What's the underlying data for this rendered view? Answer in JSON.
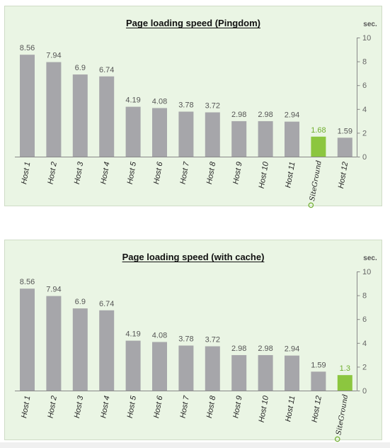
{
  "chart_data": [
    {
      "type": "bar",
      "title": "Page loading speed (Pingdom)",
      "unit": "sec.",
      "xlabel": "",
      "ylabel": "",
      "ylim": [
        0,
        10
      ],
      "yticks": [
        0,
        2,
        4,
        6,
        8,
        10
      ],
      "categories": [
        "Host 1",
        "Host 2",
        "Host 3",
        "Host 4",
        "Host 5",
        "Host 6",
        "Host 7",
        "Host 8",
        "Host 9",
        "Host 10",
        "Host 11",
        "SiteGround",
        "Host 12"
      ],
      "values": [
        8.56,
        7.94,
        6.9,
        6.74,
        4.19,
        4.08,
        3.78,
        3.72,
        2.98,
        2.98,
        2.94,
        1.68,
        1.59
      ],
      "highlight": "SiteGround",
      "colors": {
        "bar": "#a6a6aa",
        "highlight": "#8cc63f",
        "highlight_label": "#6fae2e"
      },
      "grid": false,
      "legend": "none"
    },
    {
      "type": "bar",
      "title": "Page loading speed (with cache)",
      "unit": "sec.",
      "xlabel": "",
      "ylabel": "",
      "ylim": [
        0,
        10
      ],
      "yticks": [
        0,
        2,
        4,
        6,
        8,
        10
      ],
      "categories": [
        "Host 1",
        "Host 2",
        "Host 3",
        "Host 4",
        "Host 5",
        "Host 6",
        "Host 7",
        "Host 8",
        "Host 9",
        "Host 10",
        "Host 11",
        "Host 12",
        "SiteGround"
      ],
      "values": [
        8.56,
        7.94,
        6.9,
        6.74,
        4.19,
        4.08,
        3.78,
        3.72,
        2.98,
        2.98,
        2.94,
        1.59,
        1.3
      ],
      "highlight": "SiteGround",
      "colors": {
        "bar": "#a6a6aa",
        "highlight": "#8cc63f",
        "highlight_label": "#6fae2e"
      },
      "grid": false,
      "legend": "none"
    }
  ]
}
